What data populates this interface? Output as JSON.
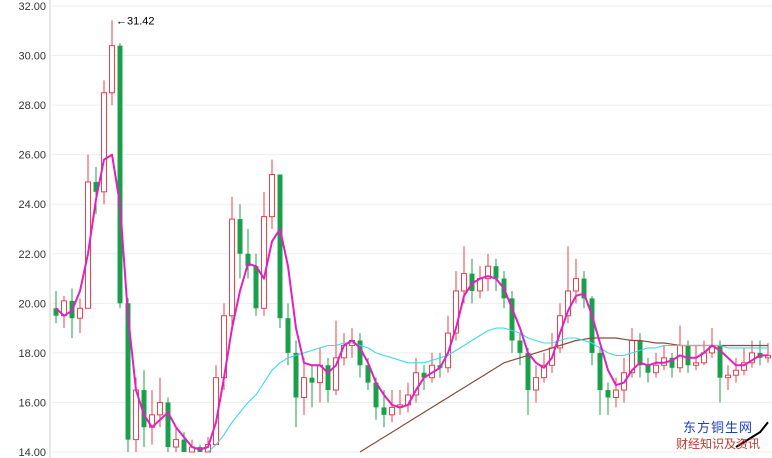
{
  "chart_data": {
    "type": "candlestick",
    "ylim": [
      14,
      32
    ],
    "yticks": [
      "14.00",
      "16.00",
      "18.00",
      "20.00",
      "22.00",
      "24.00",
      "26.00",
      "28.00",
      "30.00",
      "32.00"
    ],
    "annotation": "←31.42",
    "annotation_value": 31.42,
    "up_color": "#e8404a",
    "down_color": "#1aa04a",
    "ma_colors": [
      "#e020c0",
      "#40d8e8",
      "#8b4a3a",
      "#000000"
    ],
    "watermark": [
      "东方铜生网",
      "财经知识及资讯"
    ],
    "candles": [
      [
        19.8,
        19.5,
        20.5,
        19.2
      ],
      [
        19.5,
        20.1,
        20.3,
        19.0
      ],
      [
        20.1,
        19.4,
        20.6,
        18.6
      ],
      [
        19.4,
        19.8,
        20.2,
        18.8
      ],
      [
        19.8,
        24.9,
        26.0,
        19.8
      ],
      [
        24.9,
        24.5,
        25.5,
        23.6
      ],
      [
        24.5,
        28.5,
        29.0,
        24.0
      ],
      [
        28.5,
        30.4,
        31.42,
        28.0
      ],
      [
        30.4,
        20.0,
        30.5,
        19.8
      ],
      [
        20.0,
        14.5,
        20.2,
        14.0
      ],
      [
        14.5,
        16.5,
        17.0,
        14.0
      ],
      [
        16.5,
        15.0,
        17.3,
        14.2
      ],
      [
        15.0,
        15.5,
        16.5,
        14.3
      ],
      [
        15.5,
        16.0,
        17.0,
        15.0
      ],
      [
        16.0,
        14.2,
        16.2,
        14.0
      ],
      [
        14.2,
        14.5,
        15.0,
        14.0
      ],
      [
        14.5,
        14.0,
        14.8,
        14.0
      ],
      [
        14.0,
        14.2,
        14.5,
        14.0
      ],
      [
        14.2,
        14.0,
        14.3,
        14.0
      ],
      [
        14.0,
        14.3,
        14.6,
        14.0
      ],
      [
        14.3,
        17.0,
        17.5,
        14.3
      ],
      [
        17.0,
        19.5,
        20.0,
        16.5
      ],
      [
        19.5,
        23.4,
        24.3,
        19.0
      ],
      [
        23.4,
        22.0,
        24.0,
        21.0
      ],
      [
        22.0,
        21.5,
        23.0,
        21.0
      ],
      [
        21.5,
        19.8,
        22.0,
        19.5
      ],
      [
        19.8,
        23.5,
        24.5,
        19.5
      ],
      [
        23.5,
        25.2,
        25.8,
        23.0
      ],
      [
        25.2,
        19.4,
        25.2,
        19.0
      ],
      [
        19.4,
        18.0,
        20.0,
        17.5
      ],
      [
        18.0,
        16.2,
        18.5,
        15.0
      ],
      [
        16.2,
        17.0,
        17.8,
        15.5
      ],
      [
        17.0,
        16.8,
        17.5,
        15.8
      ],
      [
        16.8,
        17.5,
        18.2,
        16.0
      ],
      [
        17.5,
        16.5,
        17.8,
        16.0
      ],
      [
        16.5,
        17.8,
        19.3,
        16.3
      ],
      [
        17.8,
        18.3,
        18.8,
        17.5
      ],
      [
        18.3,
        18.5,
        19.0,
        17.8
      ],
      [
        18.5,
        17.5,
        18.8,
        17.0
      ],
      [
        17.5,
        16.8,
        17.8,
        16.5
      ],
      [
        16.8,
        15.8,
        17.0,
        15.3
      ],
      [
        15.8,
        15.5,
        16.5,
        15.0
      ],
      [
        15.5,
        15.8,
        16.5,
        15.2
      ],
      [
        15.8,
        15.9,
        16.5,
        15.5
      ],
      [
        15.9,
        16.3,
        16.8,
        15.6
      ],
      [
        16.3,
        17.2,
        17.8,
        16.0
      ],
      [
        17.2,
        17.0,
        17.5,
        16.5
      ],
      [
        17.0,
        17.5,
        18.0,
        16.8
      ],
      [
        17.5,
        17.4,
        18.0,
        17.0
      ],
      [
        17.4,
        18.8,
        19.5,
        17.2
      ],
      [
        18.8,
        20.5,
        21.3,
        18.5
      ],
      [
        20.5,
        21.2,
        22.3,
        20.0
      ],
      [
        21.2,
        20.5,
        21.8,
        20.0
      ],
      [
        20.5,
        21.0,
        21.5,
        20.2
      ],
      [
        21.0,
        21.5,
        22.0,
        20.5
      ],
      [
        21.5,
        21.0,
        21.8,
        20.5
      ],
      [
        21.0,
        20.2,
        21.3,
        19.8
      ],
      [
        20.2,
        18.5,
        20.5,
        18.0
      ],
      [
        18.5,
        18.0,
        18.8,
        17.5
      ],
      [
        18.0,
        16.5,
        18.2,
        15.5
      ],
      [
        16.5,
        17.0,
        17.5,
        16.0
      ],
      [
        17.0,
        17.5,
        18.0,
        16.8
      ],
      [
        17.5,
        18.2,
        18.8,
        17.2
      ],
      [
        18.2,
        19.5,
        20.0,
        18.0
      ],
      [
        19.5,
        20.5,
        22.3,
        19.2
      ],
      [
        20.5,
        21.0,
        21.8,
        20.0
      ],
      [
        21.0,
        20.2,
        21.3,
        19.8
      ],
      [
        20.2,
        18.0,
        20.3,
        17.5
      ],
      [
        18.0,
        16.5,
        18.2,
        15.5
      ],
      [
        16.5,
        16.2,
        16.8,
        15.5
      ],
      [
        16.2,
        16.5,
        17.0,
        15.8
      ],
      [
        16.5,
        17.2,
        17.8,
        16.0
      ],
      [
        17.2,
        18.5,
        19.0,
        17.0
      ],
      [
        18.5,
        17.5,
        18.8,
        17.0
      ],
      [
        17.5,
        17.2,
        17.8,
        16.8
      ],
      [
        17.2,
        17.5,
        18.0,
        17.0
      ],
      [
        17.5,
        17.8,
        18.3,
        17.3
      ],
      [
        17.8,
        17.4,
        18.0,
        17.0
      ],
      [
        17.4,
        18.3,
        19.1,
        17.2
      ],
      [
        18.3,
        17.5,
        18.5,
        17.2
      ],
      [
        17.5,
        17.6,
        18.3,
        17.3
      ],
      [
        17.6,
        18.0,
        18.5,
        17.5
      ],
      [
        18.0,
        18.3,
        19.0,
        17.8
      ],
      [
        18.3,
        17.0,
        18.5,
        16.0
      ],
      [
        17.0,
        17.1,
        17.5,
        16.5
      ],
      [
        17.1,
        17.3,
        17.8,
        16.8
      ],
      [
        17.3,
        17.6,
        18.2,
        17.1
      ],
      [
        17.6,
        18.0,
        18.5,
        17.4
      ],
      [
        18.0,
        17.8,
        18.5,
        17.5
      ],
      [
        17.8,
        17.9,
        18.4,
        17.6
      ]
    ],
    "ma5": [
      19.8,
      19.5,
      19.7,
      20.5,
      22.0,
      24.2,
      25.8,
      26.0,
      24.0,
      19.5,
      16.5,
      15.5,
      15.0,
      15.3,
      15.6,
      15.0,
      14.6,
      14.2,
      14.1,
      14.2,
      15.2,
      17.0,
      19.0,
      20.5,
      21.6,
      21.5,
      21.0,
      22.5,
      23.0,
      21.5,
      19.0,
      17.6,
      17.5,
      17.5,
      17.2,
      17.5,
      18.3,
      18.5,
      18.2,
      17.6,
      16.8,
      16.3,
      15.9,
      15.8,
      15.9,
      16.5,
      17.0,
      17.2,
      17.4,
      18.0,
      19.0,
      20.3,
      20.8,
      21.0,
      21.1,
      21.0,
      20.6,
      19.8,
      19.0,
      18.0,
      17.6,
      17.4,
      17.8,
      18.8,
      19.7,
      20.3,
      20.4,
      19.5,
      18.4,
      17.3,
      16.7,
      16.8,
      17.3,
      17.6,
      17.5,
      17.6,
      17.6,
      17.7,
      17.9,
      17.8,
      17.8,
      18.0,
      18.3,
      18.1,
      17.8,
      17.5,
      17.5,
      17.7,
      17.9,
      17.9
    ],
    "ma_mid": [
      null,
      null,
      null,
      null,
      null,
      null,
      null,
      null,
      null,
      null,
      null,
      null,
      null,
      null,
      null,
      null,
      null,
      null,
      null,
      14.0,
      14.3,
      14.7,
      15.2,
      15.6,
      16.0,
      16.3,
      16.8,
      17.3,
      17.6,
      17.8,
      17.9,
      18.0,
      18.1,
      18.2,
      18.3,
      18.3,
      18.4,
      18.4,
      18.3,
      18.2,
      18.0,
      17.9,
      17.8,
      17.7,
      17.6,
      17.6,
      17.6,
      17.7,
      17.8,
      17.9,
      18.1,
      18.3,
      18.5,
      18.7,
      18.9,
      19.0,
      19.0,
      18.9,
      18.8,
      18.6,
      18.5,
      18.4,
      18.4,
      18.5,
      18.6,
      18.6,
      18.5,
      18.4,
      18.2,
      18.0,
      17.9,
      17.9,
      18.0,
      18.1,
      18.2,
      18.2,
      18.3,
      18.3,
      18.3,
      18.3,
      18.3,
      18.3,
      18.3,
      18.3,
      18.2,
      18.2,
      18.2,
      18.2,
      18.2,
      18.2
    ],
    "ma_long": [
      null,
      null,
      null,
      null,
      null,
      null,
      null,
      null,
      null,
      null,
      null,
      null,
      null,
      null,
      null,
      null,
      null,
      null,
      null,
      null,
      null,
      null,
      null,
      null,
      null,
      null,
      null,
      null,
      null,
      null,
      null,
      null,
      null,
      null,
      null,
      null,
      null,
      null,
      14.0,
      14.2,
      14.4,
      14.6,
      14.8,
      15.0,
      15.2,
      15.4,
      15.6,
      15.8,
      16.0,
      16.2,
      16.4,
      16.6,
      16.8,
      17.0,
      17.2,
      17.4,
      17.6,
      17.7,
      17.8,
      17.9,
      18.0,
      18.1,
      18.2,
      18.3,
      18.4,
      18.5,
      18.55,
      18.6,
      18.6,
      18.6,
      18.6,
      18.55,
      18.5,
      18.5,
      18.45,
      18.4,
      18.4,
      18.35,
      18.3,
      18.3,
      18.3,
      18.3,
      18.3,
      18.3,
      18.3,
      18.3,
      18.3,
      18.3,
      18.3,
      18.3
    ],
    "ma_xl": [
      null,
      null,
      null,
      null,
      null,
      null,
      null,
      null,
      null,
      null,
      null,
      null,
      null,
      null,
      null,
      null,
      null,
      null,
      null,
      null,
      null,
      null,
      null,
      null,
      null,
      null,
      null,
      null,
      null,
      null,
      null,
      null,
      null,
      null,
      null,
      null,
      null,
      null,
      null,
      null,
      null,
      null,
      null,
      null,
      null,
      null,
      null,
      null,
      null,
      null,
      null,
      null,
      null,
      null,
      null,
      null,
      null,
      null,
      null,
      null,
      null,
      null,
      null,
      null,
      null,
      null,
      null,
      null,
      null,
      null,
      null,
      null,
      null,
      null,
      null,
      null,
      null,
      null,
      null,
      null,
      null,
      null,
      null,
      null,
      null,
      14.2,
      14.4,
      14.6,
      14.8,
      15.2
    ]
  }
}
